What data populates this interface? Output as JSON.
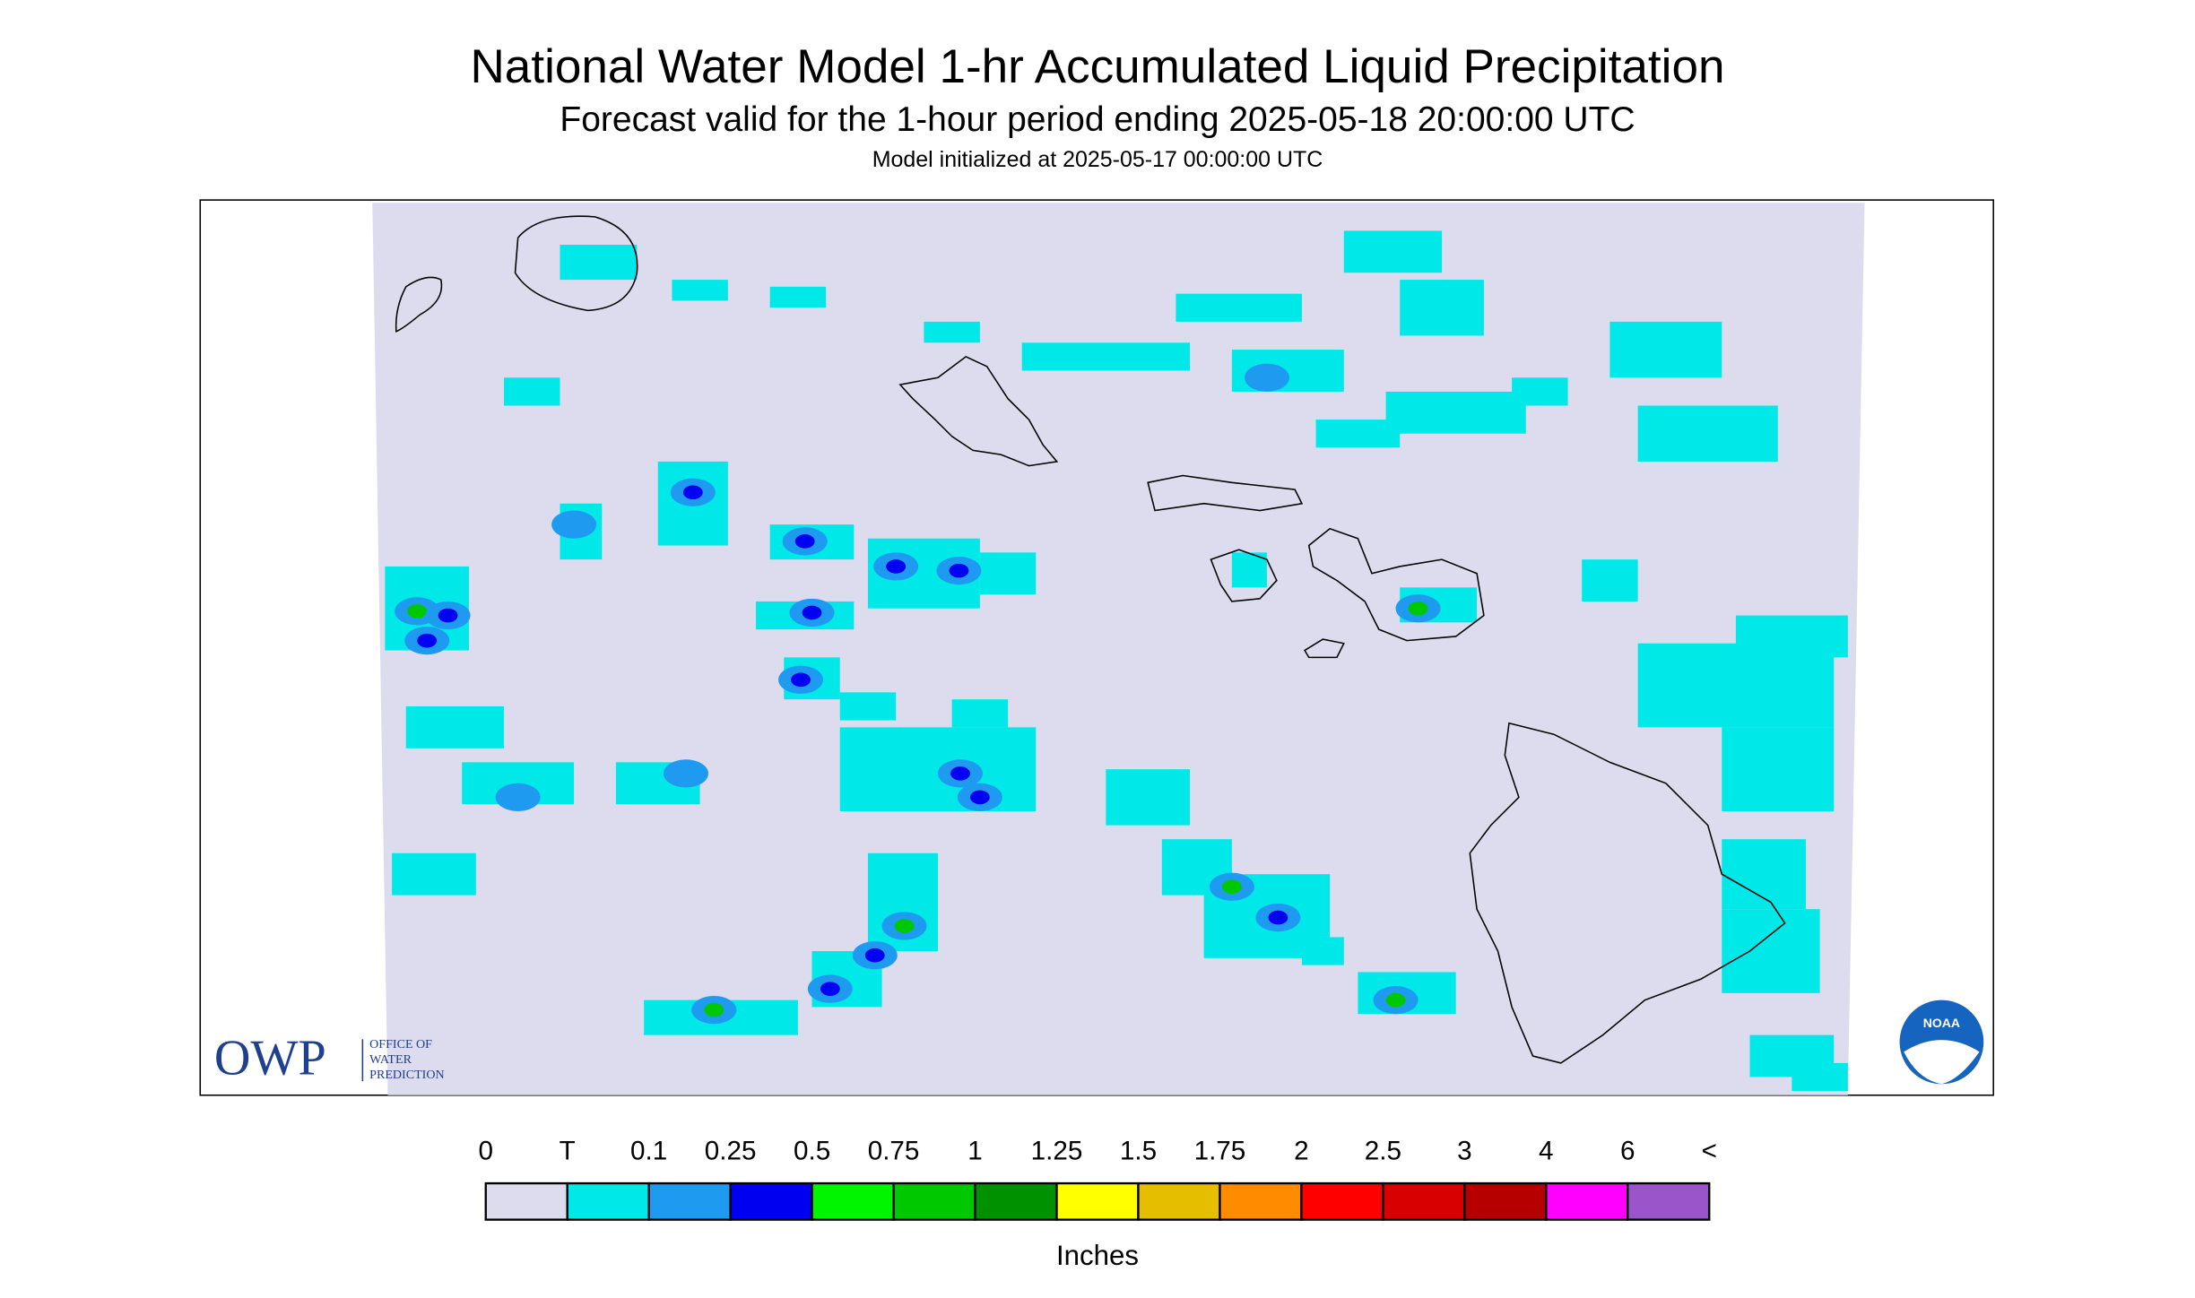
{
  "header": {
    "title": "National Water Model 1-hr Accumulated Liquid Precipitation",
    "subtitle": "Forecast valid for the 1-hour period ending 2025-05-18 20:00:00 UTC",
    "init": "Model initialized at 2025-05-17 00:00:00 UTC"
  },
  "legend": {
    "labels": [
      "0",
      "T",
      "0.1",
      "0.25",
      "0.5",
      "0.75",
      "1",
      "1.25",
      "1.5",
      "1.75",
      "2",
      "2.5",
      "3",
      "4",
      "6",
      "<"
    ],
    "colors": [
      "#dcdcee",
      "#00e8e8",
      "#1e9bf0",
      "#0000f0",
      "#00f500",
      "#00c800",
      "#009100",
      "#ffff00",
      "#e6be00",
      "#ff8c00",
      "#ff0000",
      "#d80000",
      "#b60000",
      "#ff00ff",
      "#9955c9"
    ],
    "unit": "Inches"
  },
  "logos": {
    "owp": "OWP",
    "owp_lines": [
      "OFFICE OF",
      "WATER",
      "PREDICTION"
    ],
    "noaa": "NOAA"
  }
}
